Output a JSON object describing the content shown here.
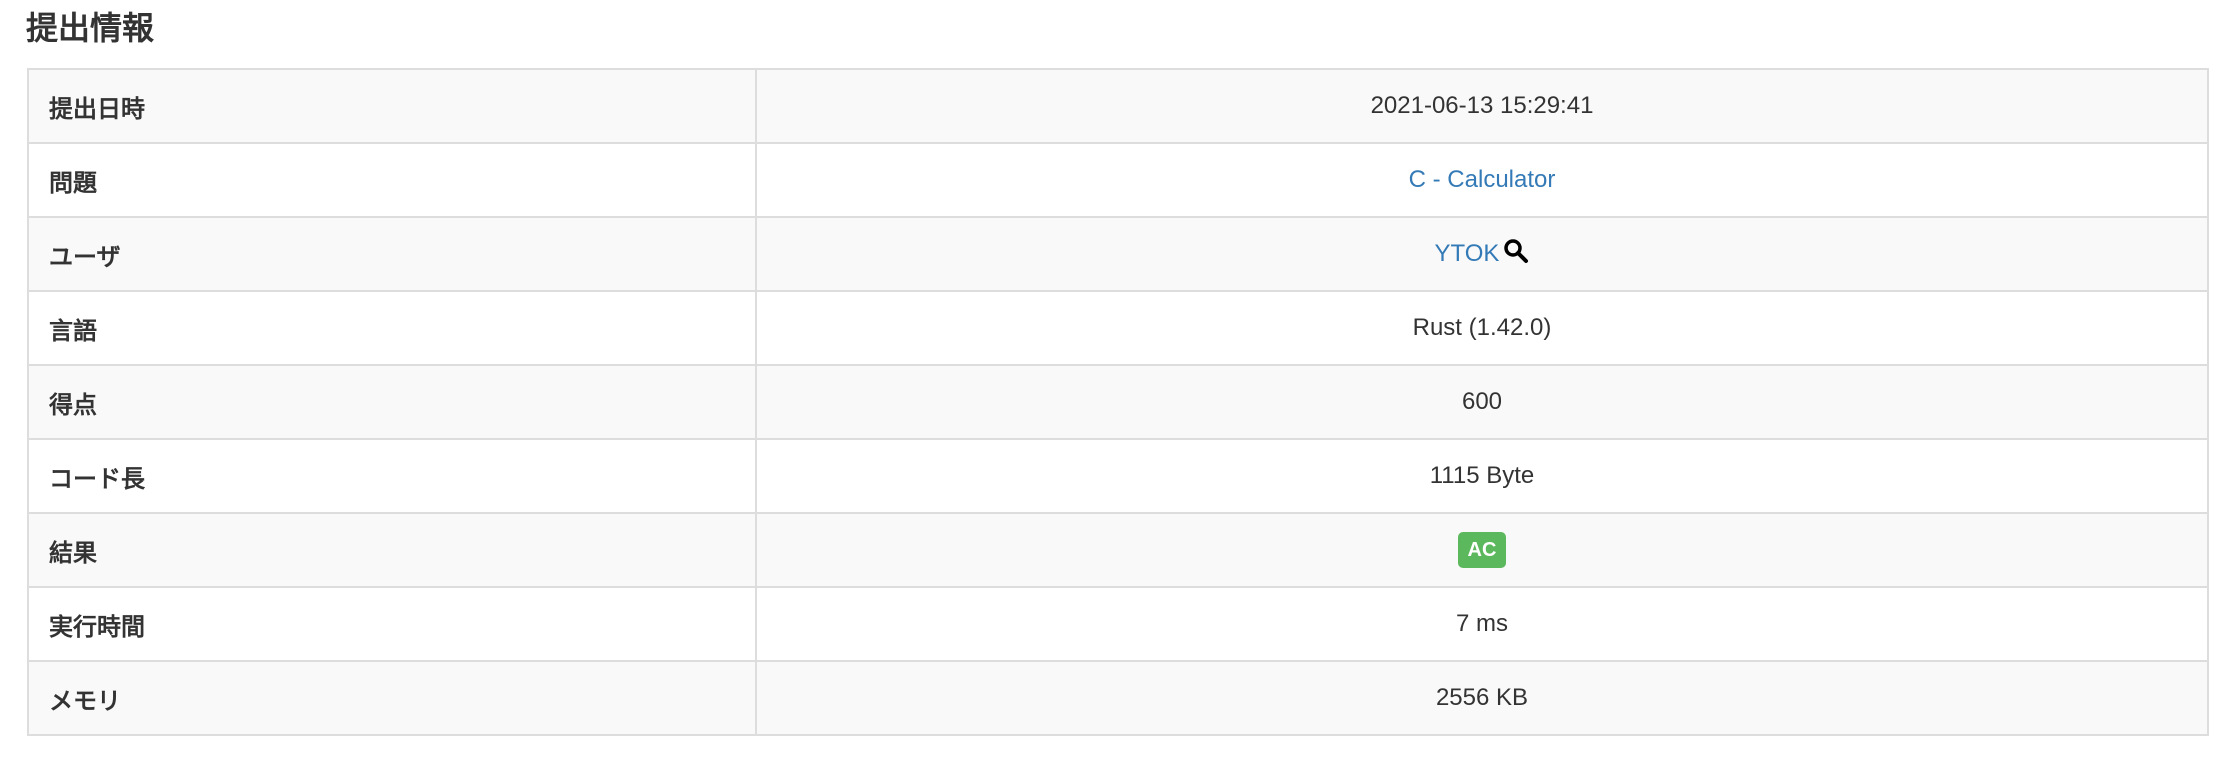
{
  "title": "提出情報",
  "rows": [
    {
      "label": "提出日時",
      "value": "2021-06-13 15:29:41"
    },
    {
      "label": "問題",
      "value": "C - Calculator"
    },
    {
      "label": "ユーザ",
      "value": "YTOK"
    },
    {
      "label": "言語",
      "value": "Rust (1.42.0)"
    },
    {
      "label": "得点",
      "value": "600"
    },
    {
      "label": "コード長",
      "value": "1115 Byte"
    },
    {
      "label": "結果",
      "value": "AC"
    },
    {
      "label": "実行時間",
      "value": "7 ms"
    },
    {
      "label": "メモリ",
      "value": "2556 KB"
    }
  ],
  "colors": {
    "link": "#337ab7",
    "ac_badge": "#5cb85c"
  },
  "icons": {
    "user_search": "search-icon"
  }
}
